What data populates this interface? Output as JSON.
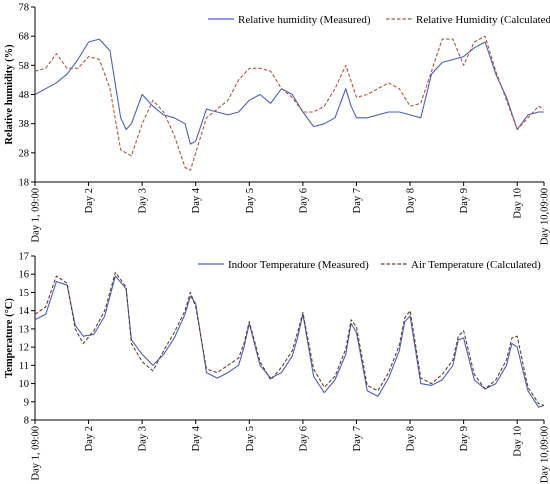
{
  "figure": {
    "charts": [
      {
        "type": "line",
        "ylabel": "Relative humidity (%)",
        "ylim": [
          18,
          78
        ],
        "yticks": [
          18,
          28,
          38,
          48,
          58,
          68,
          78
        ],
        "grid": false,
        "legend_position": "top-right",
        "x_tick_labels": [
          "Day 1, 09:00",
          "Day 2",
          "Day 3",
          "Day 4",
          "Day 5",
          "Day 6",
          "Day 7",
          "Day 8",
          "Day 9",
          "Day 10",
          "Day 10,09:00"
        ],
        "series": [
          {
            "name": "Relative humidity (Measured)",
            "color": "#4a5fbf",
            "dash": "solid",
            "x": [
              1,
              1.2,
              1.4,
              1.6,
              1.8,
              2,
              2.2,
              2.4,
              2.6,
              2.7,
              2.8,
              3,
              3.2,
              3.4,
              3.6,
              3.8,
              3.9,
              4,
              4.2,
              4.4,
              4.6,
              4.8,
              5,
              5.2,
              5.4,
              5.6,
              5.8,
              6,
              6.2,
              6.4,
              6.6,
              6.8,
              6.9,
              7,
              7.2,
              7.4,
              7.6,
              7.8,
              8,
              8.2,
              8.4,
              8.6,
              8.8,
              9,
              9.2,
              9.4,
              9.6,
              9.8,
              10,
              10.2,
              10.4,
              10.5
            ],
            "y": [
              48,
              50,
              52,
              55,
              60,
              66,
              67,
              63,
              40,
              36,
              38,
              48,
              44,
              41,
              40,
              38,
              31,
              32,
              43,
              42,
              41,
              42,
              46,
              48,
              45,
              50,
              48,
              42,
              37,
              38,
              40,
              50,
              44,
              40,
              40,
              41,
              42,
              42,
              41,
              40,
              55,
              59,
              60,
              61,
              64,
              66,
              55,
              47,
              36,
              41,
              42,
              42
            ]
          },
          {
            "name": "Relative Humidity (Calculated)",
            "color": "#b5543a",
            "dash": "dashed",
            "x": [
              1,
              1.2,
              1.4,
              1.6,
              1.8,
              2,
              2.2,
              2.4,
              2.6,
              2.8,
              3,
              3.2,
              3.4,
              3.6,
              3.8,
              3.9,
              4,
              4.2,
              4.4,
              4.6,
              4.8,
              5,
              5.2,
              5.4,
              5.6,
              5.8,
              6,
              6.2,
              6.4,
              6.6,
              6.8,
              7,
              7.2,
              7.4,
              7.6,
              7.8,
              8,
              8.2,
              8.4,
              8.6,
              8.8,
              9,
              9.2,
              9.4,
              9.6,
              9.8,
              10,
              10.2,
              10.4,
              10.5
            ],
            "y": [
              56,
              57,
              62,
              57,
              57,
              61,
              60,
              50,
              29,
              27,
              38,
              46,
              42,
              34,
              23,
              22,
              28,
              40,
              43,
              46,
              53,
              57,
              57,
              56,
              50,
              47,
              42,
              42,
              44,
              50,
              58,
              47,
              48,
              50,
              52,
              50,
              44,
              45,
              56,
              67,
              67,
              58,
              66,
              68,
              56,
              46,
              36,
              40,
              44,
              43
            ]
          }
        ]
      },
      {
        "type": "line",
        "ylabel": "Temperature (°C)",
        "ylim": [
          8,
          17
        ],
        "yticks": [
          8,
          9,
          10,
          11,
          12,
          13,
          14,
          15,
          16,
          17
        ],
        "grid": false,
        "legend_position": "top-right",
        "x_tick_labels": [
          "Day 1, 09:00",
          "Day 2",
          "Day 3",
          "Day 4",
          "Day 5",
          "Day 6",
          "Day 7",
          "Day 8",
          "Day 9",
          "Day 10",
          "Day 10,09:00"
        ],
        "series": [
          {
            "name": "Indoor Temperature (Measured)",
            "color": "#4a5fbf",
            "dash": "solid",
            "x": [
              1,
              1.2,
              1.4,
              1.6,
              1.75,
              1.9,
              2.1,
              2.3,
              2.5,
              2.7,
              2.8,
              3,
              3.2,
              3.4,
              3.6,
              3.8,
              3.9,
              4,
              4.2,
              4.4,
              4.6,
              4.8,
              4.9,
              5,
              5.2,
              5.4,
              5.6,
              5.8,
              5.9,
              6,
              6.2,
              6.4,
              6.6,
              6.8,
              6.9,
              7,
              7.2,
              7.4,
              7.6,
              7.8,
              7.9,
              8,
              8.2,
              8.4,
              8.6,
              8.8,
              8.9,
              9,
              9.2,
              9.4,
              9.6,
              9.8,
              9.9,
              10,
              10.2,
              10.4,
              10.5
            ],
            "y": [
              13.5,
              13.8,
              15.6,
              15.4,
              13.2,
              12.6,
              12.7,
              13.7,
              15.9,
              15.2,
              12.4,
              11.6,
              11.0,
              11.6,
              12.5,
              13.8,
              14.8,
              14.4,
              10.6,
              10.3,
              10.6,
              11.0,
              12.0,
              13.3,
              11.0,
              10.3,
              10.6,
              11.5,
              12.5,
              13.8,
              10.4,
              9.5,
              10.2,
              11.6,
              13.3,
              12.8,
              9.6,
              9.3,
              10.3,
              11.8,
              13.4,
              13.7,
              10.0,
              9.9,
              10.2,
              11.0,
              12.4,
              12.5,
              10.2,
              9.7,
              10.0,
              11.0,
              12.2,
              12.0,
              9.6,
              8.7,
              8.8
            ]
          },
          {
            "name": "Air Temperature (Calculated)",
            "color": "#6b3a2a",
            "dash": "dashed",
            "x": [
              1,
              1.2,
              1.4,
              1.6,
              1.75,
              1.9,
              2.1,
              2.3,
              2.5,
              2.7,
              2.8,
              3,
              3.2,
              3.4,
              3.6,
              3.8,
              3.9,
              4,
              4.2,
              4.4,
              4.6,
              4.8,
              4.9,
              5,
              5.2,
              5.4,
              5.6,
              5.8,
              5.9,
              6,
              6.2,
              6.4,
              6.6,
              6.8,
              6.9,
              7,
              7.2,
              7.4,
              7.6,
              7.8,
              7.9,
              8,
              8.2,
              8.4,
              8.6,
              8.8,
              8.9,
              9,
              9.2,
              9.4,
              9.6,
              9.8,
              9.9,
              10,
              10.2,
              10.4,
              10.5
            ],
            "y": [
              13.8,
              14.2,
              15.9,
              15.5,
              13.0,
              12.2,
              12.9,
              14.0,
              16.1,
              15.3,
              12.2,
              11.2,
              10.7,
              11.8,
              12.8,
              14.0,
              15.0,
              14.2,
              10.8,
              10.6,
              11.0,
              11.4,
              12.2,
              13.4,
              11.2,
              10.2,
              10.9,
              11.8,
              12.8,
              13.9,
              10.8,
              9.8,
              10.4,
              11.9,
              13.5,
              13.1,
              9.9,
              9.6,
              10.6,
              12.1,
              13.6,
              14.0,
              10.3,
              10.0,
              10.5,
              11.3,
              12.6,
              12.9,
              10.5,
              9.7,
              10.2,
              11.3,
              12.5,
              12.6,
              9.8,
              8.9,
              8.8
            ]
          }
        ]
      }
    ]
  },
  "chart_data": [
    {
      "type": "line",
      "ylabel": "Relative humidity (%)",
      "ylim": [
        18,
        78
      ],
      "categories": [
        "Day 1, 09:00",
        "Day 2",
        "Day 3",
        "Day 4",
        "Day 5",
        "Day 6",
        "Day 7",
        "Day 8",
        "Day 9",
        "Day 10",
        "Day 10,09:00"
      ],
      "series": [
        {
          "name": "Relative humidity (Measured)"
        },
        {
          "name": "Relative Humidity (Calculated)"
        }
      ]
    },
    {
      "type": "line",
      "ylabel": "Temperature (°C)",
      "ylim": [
        8,
        17
      ],
      "categories": [
        "Day 1, 09:00",
        "Day 2",
        "Day 3",
        "Day 4",
        "Day 5",
        "Day 6",
        "Day 7",
        "Day 8",
        "Day 9",
        "Day 10",
        "Day 10,09:00"
      ],
      "series": [
        {
          "name": "Indoor Temperature (Measured)"
        },
        {
          "name": "Air Temperature (Calculated)"
        }
      ]
    }
  ]
}
